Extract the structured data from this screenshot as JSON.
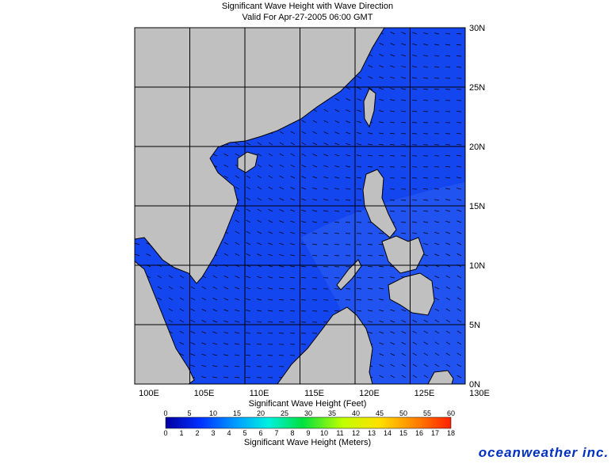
{
  "header": {
    "title": "Significant Wave Height with Wave Direction",
    "subtitle": "Valid For Apr-27-2005 06:00 GMT"
  },
  "map": {
    "lat_labels": [
      "30N",
      "25N",
      "20N",
      "15N",
      "10N",
      "5N",
      "0N"
    ],
    "lon_labels": [
      "100E",
      "105E",
      "110E",
      "115E",
      "120E",
      "125E",
      "130E"
    ]
  },
  "legend": {
    "feet_title": "Significant Wave Height (Feet)",
    "feet_labels": [
      0,
      5,
      10,
      15,
      20,
      25,
      30,
      35,
      40,
      45,
      50,
      55,
      60
    ],
    "meters_title": "Significant Wave Height (Meters)",
    "meters_labels": [
      0,
      1,
      2,
      3,
      4,
      5,
      6,
      7,
      8,
      9,
      10,
      11,
      12,
      13,
      14,
      15,
      16,
      17,
      18
    ]
  },
  "logo": "oceanweather inc."
}
